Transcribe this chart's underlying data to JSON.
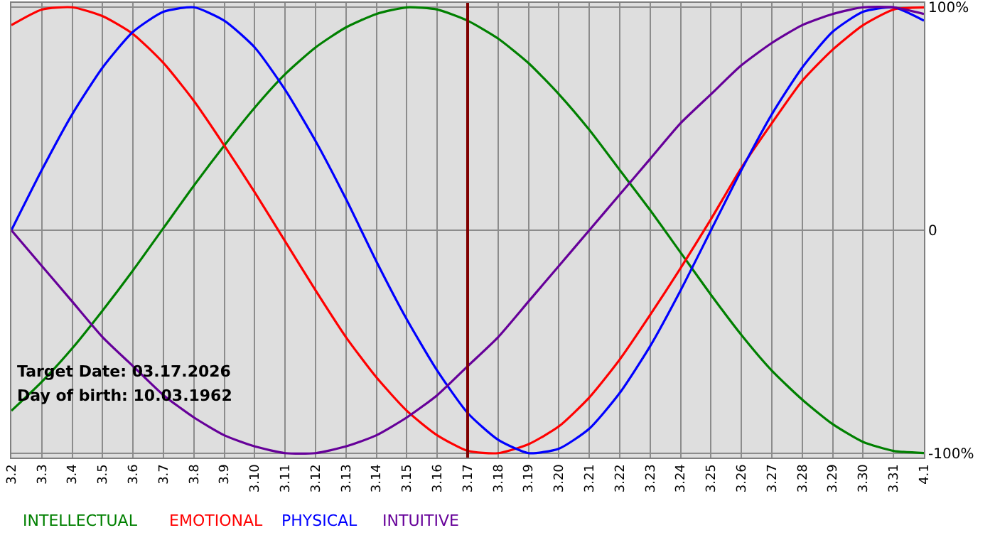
{
  "chart_data": {
    "type": "line",
    "categories": [
      "3.2",
      "3.3",
      "3.4",
      "3.5",
      "3.6",
      "3.7",
      "3.8",
      "3.9",
      "3.10",
      "3.11",
      "3.12",
      "3.13",
      "3.14",
      "3.15",
      "3.16",
      "3.17",
      "3.18",
      "3.19",
      "3.20",
      "3.21",
      "3.22",
      "3.23",
      "3.24",
      "3.25",
      "3.26",
      "3.27",
      "3.28",
      "3.29",
      "3.30",
      "3.31",
      "4.1"
    ],
    "series": [
      {
        "name": "INTELLECTUAL",
        "color": "#008000",
        "values": [
          -81,
          -68,
          -53,
          -36,
          -18,
          1,
          20,
          38,
          55,
          70,
          82,
          91,
          97,
          100,
          99,
          94,
          86,
          75,
          61,
          45,
          27,
          9,
          -10,
          -29,
          -47,
          -63,
          -76,
          -87,
          -95,
          -99,
          -100
        ]
      },
      {
        "name": "EMOTIONAL",
        "color": "#ff0000",
        "values": [
          92,
          99,
          100,
          96,
          88,
          75,
          58,
          38,
          17,
          -5,
          -27,
          -48,
          -66,
          -81,
          -92,
          -99,
          -100,
          -96,
          -88,
          -75,
          -58,
          -38,
          -17,
          5,
          28,
          48,
          67,
          81,
          92,
          99,
          100
        ]
      },
      {
        "name": "PHYSICAL",
        "color": "#0000ff",
        "values": [
          0,
          27,
          52,
          73,
          89,
          98,
          100,
          94,
          82,
          63,
          40,
          14,
          -14,
          -40,
          -63,
          -82,
          -94,
          -100,
          -98,
          -89,
          -73,
          -52,
          -27,
          0,
          27,
          52,
          73,
          89,
          98,
          100,
          94
        ]
      },
      {
        "name": "INTUITIVE",
        "color": "#660099",
        "values": [
          0,
          -16,
          -32,
          -48,
          -61,
          -74,
          -84,
          -92,
          -97,
          -100,
          -100,
          -97,
          -92,
          -84,
          -74,
          -61,
          -48,
          -32,
          -16,
          0,
          16,
          32,
          48,
          61,
          74,
          84,
          92,
          97,
          100,
          100,
          97
        ]
      }
    ],
    "ylim": [
      -102,
      102
    ],
    "yticks": [
      {
        "value": -100,
        "label": "-100%"
      },
      0,
      {
        "value": 100,
        "label": "100%"
      }
    ],
    "ref_lines": [
      {
        "axis": "x",
        "value": "3.17",
        "label": null,
        "color": "#800000"
      }
    ],
    "annotations": [
      "Target Date: 03.17.2026",
      "Day of birth: 10.03.1962"
    ],
    "grid": true,
    "legend": "bottom left",
    "marker": "none",
    "line_style": "solid"
  }
}
